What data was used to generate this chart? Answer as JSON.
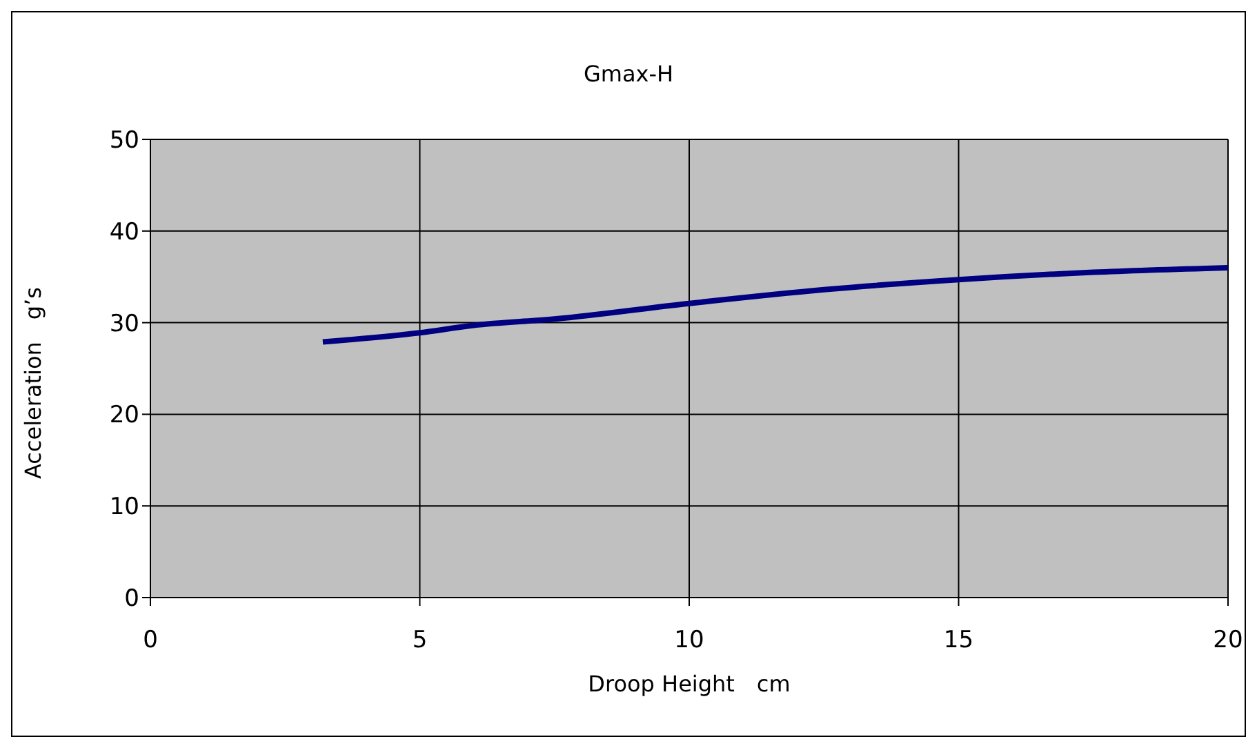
{
  "chart_data": {
    "type": "line",
    "title": "Gmax-H",
    "xlabel": "Droop Height　cm",
    "ylabel": "Acceleration　g’s",
    "x": [
      3.2,
      5,
      6,
      7.5,
      10,
      12.5,
      15,
      17.5,
      20
    ],
    "series": [
      {
        "color": "#000080",
        "values": [
          27.9,
          28.9,
          29.7,
          30.4,
          32.1,
          33.6,
          34.7,
          35.5,
          36.0
        ]
      }
    ],
    "xlim": [
      0,
      20
    ],
    "xticks": [
      0,
      5,
      10,
      15,
      20
    ],
    "ylim": [
      0,
      50
    ],
    "yticks": [
      0,
      10,
      20,
      30,
      40,
      50
    ],
    "grid": true,
    "legend": false,
    "marker": "none",
    "line_style": "solid"
  }
}
